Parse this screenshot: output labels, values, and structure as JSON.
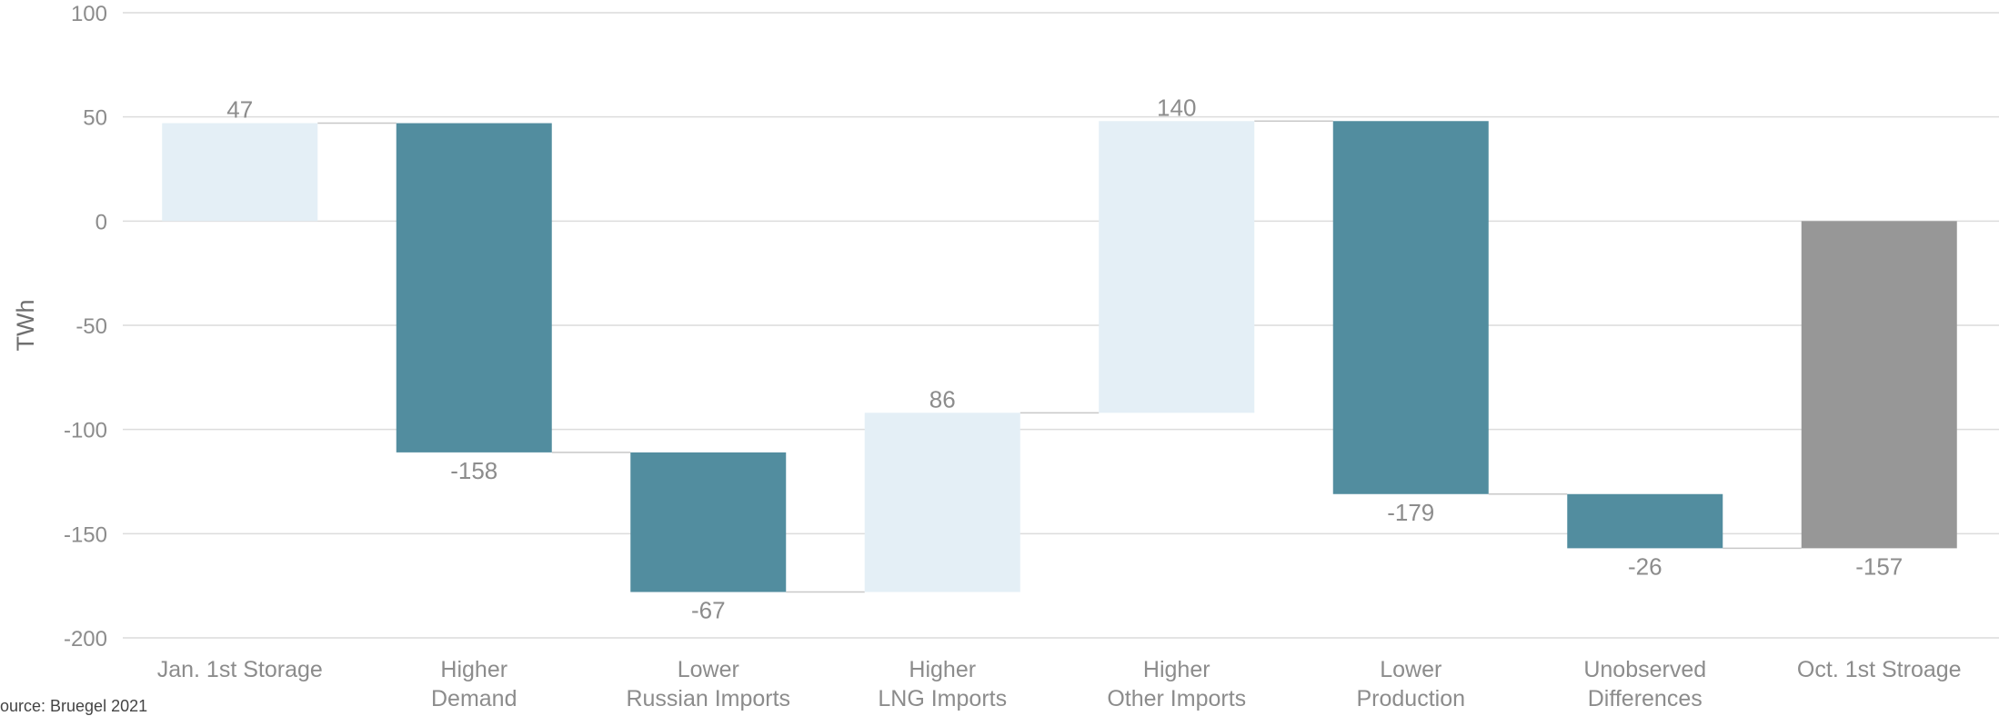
{
  "chart_data": {
    "type": "bar",
    "subtype": "waterfall",
    "ylabel": "TWh",
    "xlabel": "",
    "ylim": [
      -200,
      100
    ],
    "yticks": [
      100,
      50,
      0,
      -50,
      -100,
      -150,
      -200
    ],
    "grid": true,
    "categories": [
      [
        "Jan. 1st Storage"
      ],
      [
        "Higher",
        "Demand"
      ],
      [
        "Lower",
        "Russian Imports"
      ],
      [
        "Higher",
        "LNG Imports"
      ],
      [
        "Higher",
        "Other Imports"
      ],
      [
        "Lower",
        "Production"
      ],
      [
        "Unobserved",
        "Differences"
      ],
      [
        "Oct. 1st Stroage"
      ]
    ],
    "bars": [
      {
        "start": 0,
        "end": 47,
        "label": "47",
        "kind": "increase",
        "label_pos": "top"
      },
      {
        "start": 47,
        "end": -111,
        "label": "-158",
        "kind": "decrease",
        "label_pos": "bottom"
      },
      {
        "start": -111,
        "end": -178,
        "label": "-67",
        "kind": "decrease",
        "label_pos": "bottom"
      },
      {
        "start": -178,
        "end": -92,
        "label": "86",
        "kind": "increase",
        "label_pos": "top"
      },
      {
        "start": -92,
        "end": 48,
        "label": "140",
        "kind": "increase",
        "label_pos": "top"
      },
      {
        "start": 48,
        "end": -131,
        "label": "-179",
        "kind": "decrease",
        "label_pos": "bottom"
      },
      {
        "start": -131,
        "end": -157,
        "label": "-26",
        "kind": "decrease",
        "label_pos": "bottom"
      },
      {
        "start": 0,
        "end": -157,
        "label": "-157",
        "kind": "total",
        "label_pos": "bottom"
      }
    ],
    "colors": {
      "increase": "#e4eff6",
      "decrease": "#528d9f",
      "total": "#979797",
      "grid": "#dcdcdc",
      "connector": "#c8c8c8"
    }
  },
  "source": "ource: Bruegel 2021"
}
